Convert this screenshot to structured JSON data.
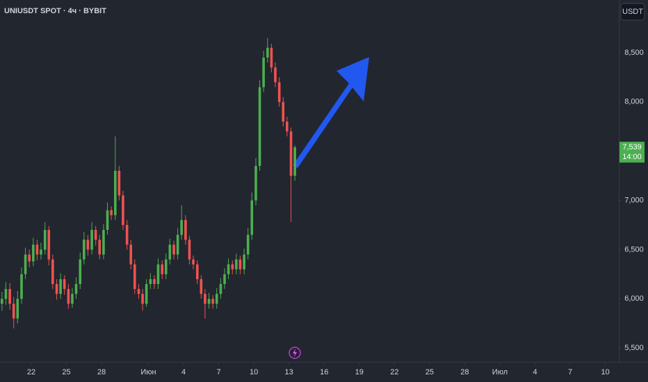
{
  "chart_data": {
    "type": "candlestick",
    "title": "UNIUSDT SPOT · 4ч · BYBIT",
    "currency": "USDT",
    "up_color": "#4caf50",
    "down_color": "#ef5350",
    "x": [
      19.5,
      19.83,
      20.17,
      20.5,
      20.83,
      21.17,
      21.5,
      21.83,
      22.17,
      22.5,
      22.83,
      23.17,
      23.5,
      23.83,
      24.17,
      24.5,
      24.83,
      25.17,
      25.5,
      25.83,
      26.17,
      26.5,
      26.83,
      27.17,
      27.5,
      27.83,
      28.17,
      28.5,
      28.83,
      29.17,
      29.5,
      29.83,
      30.17,
      30.5,
      30.83,
      31.17,
      31.5,
      31.83,
      32.17,
      32.5,
      32.83,
      33.17,
      33.5,
      33.83,
      34.17,
      34.5,
      34.83,
      35.17,
      35.5,
      35.83,
      36.17,
      36.5,
      36.83,
      37.17,
      37.5,
      37.83,
      38.17,
      38.5,
      38.83,
      39.17,
      39.5,
      39.83,
      40.17,
      40.5,
      40.83,
      41.17,
      41.5,
      41.83,
      42.17,
      42.5,
      42.83,
      43.17,
      43.5,
      43.83,
      44.17,
      44.5
    ],
    "open": [
      5950,
      6000,
      6100,
      5950,
      5800,
      6000,
      6250,
      6450,
      6380,
      6550,
      6450,
      6500,
      6700,
      6400,
      6150,
      6050,
      6200,
      6100,
      5950,
      6050,
      6150,
      6400,
      6600,
      6500,
      6700,
      6600,
      6450,
      6700,
      6900,
      6850,
      7300,
      7050,
      6750,
      6550,
      6350,
      6100,
      6050,
      5950,
      6150,
      6200,
      6150,
      6350,
      6250,
      6400,
      6550,
      6450,
      6650,
      6800,
      6600,
      6400,
      6350,
      6200,
      6050,
      5950,
      6000,
      5950,
      6050,
      6150,
      6250,
      6350,
      6300,
      6400,
      6300,
      6450,
      6650,
      7000,
      7350,
      8150,
      8450,
      8550,
      8350,
      8200,
      8000,
      7800,
      7700,
      7250
    ],
    "high": [
      6070,
      6170,
      6160,
      6020,
      6080,
      6320,
      6520,
      6500,
      6620,
      6600,
      6570,
      6780,
      6740,
      6450,
      6200,
      6260,
      6240,
      6150,
      6110,
      6220,
      6470,
      6680,
      6650,
      6780,
      6740,
      6650,
      6760,
      6980,
      6940,
      7650,
      7350,
      7100,
      6800,
      6600,
      6400,
      6150,
      6100,
      6200,
      6260,
      6240,
      6410,
      6390,
      6460,
      6610,
      6590,
      6720,
      6950,
      6850,
      6640,
      6440,
      6390,
      6240,
      6100,
      6060,
      6040,
      6110,
      6210,
      6310,
      6410,
      6390,
      6460,
      6440,
      6510,
      6720,
      7080,
      7430,
      8220,
      8520,
      8650,
      8590,
      8400,
      8250,
      8050,
      7850,
      7740,
      7560
    ],
    "low": [
      5880,
      5940,
      5890,
      5700,
      5750,
      5950,
      6200,
      6320,
      6330,
      6390,
      6400,
      6450,
      6340,
      6100,
      5990,
      6000,
      6040,
      5900,
      5910,
      6000,
      6100,
      6350,
      6440,
      6450,
      6540,
      6400,
      6400,
      6650,
      6800,
      6800,
      7000,
      6700,
      6500,
      6300,
      6050,
      6000,
      5880,
      5920,
      6100,
      6100,
      6100,
      6200,
      6200,
      6350,
      6400,
      6400,
      6600,
      6550,
      6350,
      6300,
      6150,
      6000,
      5800,
      5900,
      5900,
      5900,
      6000,
      6100,
      6200,
      6250,
      6250,
      6250,
      6250,
      6400,
      6600,
      6950,
      7300,
      8100,
      8400,
      8300,
      8150,
      7950,
      7750,
      7650,
      6780,
      7200
    ],
    "close": [
      6000,
      6100,
      5950,
      5800,
      6000,
      6250,
      6450,
      6380,
      6550,
      6450,
      6500,
      6700,
      6400,
      6150,
      6050,
      6200,
      6100,
      5950,
      6050,
      6150,
      6400,
      6600,
      6500,
      6700,
      6600,
      6450,
      6700,
      6900,
      6850,
      7300,
      7050,
      6750,
      6550,
      6350,
      6100,
      6050,
      5950,
      6150,
      6200,
      6150,
      6350,
      6250,
      6400,
      6550,
      6450,
      6650,
      6800,
      6600,
      6400,
      6350,
      6200,
      6050,
      5950,
      6000,
      5950,
      6050,
      6150,
      6250,
      6350,
      6300,
      6400,
      6300,
      6450,
      6650,
      7000,
      7350,
      8150,
      8450,
      8550,
      8350,
      8200,
      8000,
      7800,
      7700,
      7250,
      7539
    ],
    "last_price": {
      "value": 7539,
      "label": "7,539"
    },
    "countdown": "14:00",
    "xlim": [
      19.33,
      72.15
    ],
    "xticks": [
      22,
      25,
      28,
      {
        "value": 32,
        "label": "Июн"
      },
      {
        "value": 35,
        "label": "4"
      },
      {
        "value": 38,
        "label": "7"
      },
      {
        "value": 41,
        "label": "10"
      },
      {
        "value": 44,
        "label": "13"
      },
      {
        "value": 47,
        "label": "16"
      },
      {
        "value": 50,
        "label": "19"
      },
      {
        "value": 53,
        "label": "22"
      },
      {
        "value": 56,
        "label": "25"
      },
      {
        "value": 59,
        "label": "28"
      },
      {
        "value": 62,
        "label": "Июл"
      },
      {
        "value": 65,
        "label": "4"
      },
      {
        "value": 68,
        "label": "7"
      },
      {
        "value": 71,
        "label": "10"
      }
    ],
    "ylim": [
      5360,
      9035
    ],
    "yticks": [
      {
        "value": 5500,
        "label": "5,500"
      },
      {
        "value": 6000,
        "label": "6,000"
      },
      {
        "value": 6500,
        "label": "6,500"
      },
      {
        "value": 7000,
        "label": "7,000"
      },
      {
        "value": 7500,
        "label": "7,500"
      },
      {
        "value": 8000,
        "label": "8,000"
      },
      {
        "value": 8500,
        "label": "8,500"
      }
    ]
  }
}
